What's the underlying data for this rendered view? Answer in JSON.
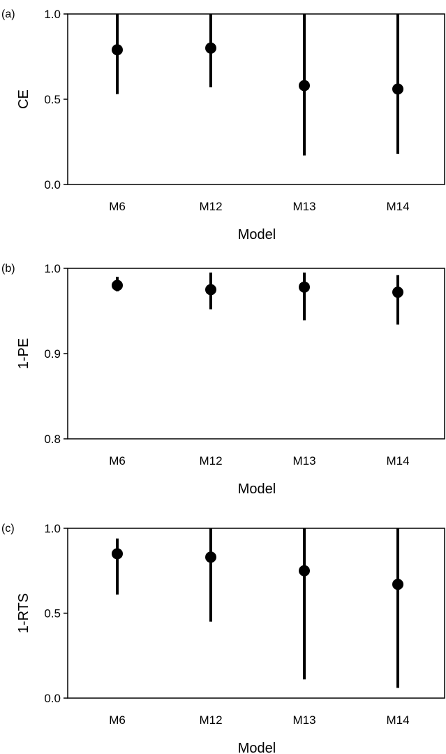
{
  "chart_data": [
    {
      "type": "scatter",
      "panel_label": "(a)",
      "categories": [
        "M6",
        "M12",
        "M13",
        "M14"
      ],
      "xlabel": "Model",
      "ylabel": "CE",
      "ylim": [
        0.0,
        1.0
      ],
      "yticks": [
        "0.0",
        "0.5",
        "1.0"
      ],
      "series": [
        {
          "values": [
            0.79,
            0.8,
            0.58,
            0.56
          ],
          "lower": [
            0.53,
            0.57,
            0.17,
            0.18
          ],
          "upper": [
            1.0,
            1.0,
            1.0,
            1.0
          ]
        }
      ]
    },
    {
      "type": "scatter",
      "panel_label": "(b)",
      "categories": [
        "M6",
        "M12",
        "M13",
        "M14"
      ],
      "xlabel": "Model",
      "ylabel": "1-PE",
      "ylim": [
        0.8,
        1.0
      ],
      "yticks": [
        "0.8",
        "0.9",
        "1.0"
      ],
      "series": [
        {
          "values": [
            0.98,
            0.975,
            0.978,
            0.972
          ],
          "lower": [
            0.973,
            0.952,
            0.939,
            0.934
          ],
          "upper": [
            0.99,
            0.995,
            0.995,
            0.992
          ]
        }
      ]
    },
    {
      "type": "scatter",
      "panel_label": "(c)",
      "categories": [
        "M6",
        "M12",
        "M13",
        "M14"
      ],
      "xlabel": "Model",
      "ylabel": "1-RTS",
      "ylim": [
        0.0,
        1.0
      ],
      "yticks": [
        "0.0",
        "0.5",
        "1.0"
      ],
      "series": [
        {
          "values": [
            0.85,
            0.83,
            0.75,
            0.67
          ],
          "lower": [
            0.61,
            0.45,
            0.11,
            0.06
          ],
          "upper": [
            0.94,
            1.0,
            1.0,
            1.0
          ]
        }
      ]
    }
  ]
}
